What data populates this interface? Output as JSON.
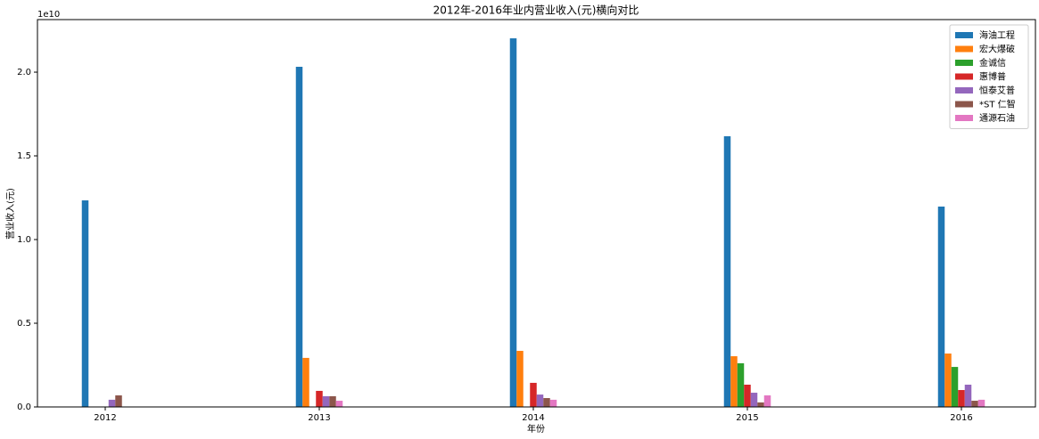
{
  "chart_data": {
    "type": "bar",
    "title": "2012年-2016年业内营业收入(元)横向对比",
    "x_label": "年份",
    "y_label": "营业收入(元)",
    "y_offset_label": "1e10",
    "categories": [
      "2012",
      "2013",
      "2014",
      "2015",
      "2016"
    ],
    "series": [
      {
        "name": "海油工程",
        "color": "#1f77b4",
        "values": [
          1.234,
          2.032,
          2.202,
          1.617,
          1.197
        ]
      },
      {
        "name": "宏大爆破",
        "color": "#ff7f0e",
        "values": [
          0,
          0.293,
          0.335,
          0.303,
          0.319
        ]
      },
      {
        "name": "金诚信",
        "color": "#2ca02c",
        "values": [
          0,
          0,
          0,
          0.261,
          0.239
        ]
      },
      {
        "name": "惠博普",
        "color": "#d62728",
        "values": [
          0,
          0.096,
          0.144,
          0.133,
          0.101
        ]
      },
      {
        "name": "恒泰艾普",
        "color": "#9467bd",
        "values": [
          0.043,
          0.064,
          0.074,
          0.085,
          0.133
        ]
      },
      {
        "name": "*ST 仁智",
        "color": "#8c564b",
        "values": [
          0.069,
          0.064,
          0.053,
          0.027,
          0.037
        ]
      },
      {
        "name": "通源石油",
        "color": "#e377c2",
        "values": [
          0,
          0.037,
          0.043,
          0.069,
          0.043
        ]
      }
    ],
    "ylim": [
      0,
      2.314
    ],
    "yticks": [
      {
        "value": 0,
        "label": "0.0"
      },
      0.5,
      {
        "value": 1,
        "label": "1.0"
      },
      1.5,
      {
        "value": 2,
        "label": "2.0"
      }
    ],
    "legend": "upper right"
  }
}
